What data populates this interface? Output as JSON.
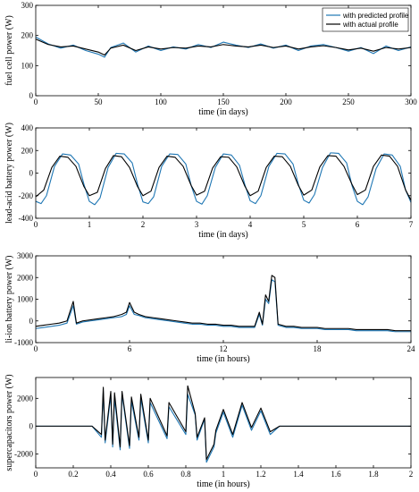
{
  "chart_data": [
    {
      "type": "line",
      "title": "",
      "xlabel": "time (in days)",
      "ylabel": "fuel cell power (W)",
      "xlim": [
        0,
        300
      ],
      "ylim": [
        0,
        300
      ],
      "xticks": [
        0,
        50,
        100,
        150,
        200,
        250,
        300
      ],
      "yticks": [
        0,
        100,
        200,
        300
      ],
      "legend_position": "top-right",
      "series": [
        {
          "name": "with predicted profile",
          "color": "#1f77b4",
          "x": [
            0,
            10,
            20,
            30,
            40,
            50,
            55,
            60,
            70,
            80,
            90,
            100,
            110,
            120,
            130,
            140,
            150,
            160,
            170,
            180,
            190,
            200,
            210,
            220,
            230,
            240,
            250,
            260,
            270,
            280,
            290,
            300
          ],
          "y": [
            195,
            172,
            158,
            168,
            150,
            138,
            128,
            160,
            175,
            145,
            165,
            150,
            162,
            155,
            170,
            160,
            178,
            168,
            160,
            172,
            158,
            168,
            150,
            165,
            170,
            160,
            148,
            160,
            140,
            165,
            150,
            162
          ]
        },
        {
          "name": "with actual profile",
          "color": "#000000",
          "x": [
            0,
            10,
            20,
            30,
            40,
            50,
            55,
            60,
            70,
            80,
            90,
            100,
            110,
            120,
            130,
            140,
            150,
            160,
            170,
            180,
            190,
            200,
            210,
            220,
            230,
            240,
            250,
            260,
            270,
            280,
            290,
            300
          ],
          "y": [
            188,
            170,
            162,
            165,
            155,
            145,
            135,
            158,
            168,
            150,
            162,
            155,
            160,
            158,
            165,
            162,
            170,
            165,
            162,
            168,
            160,
            165,
            155,
            162,
            166,
            160,
            152,
            158,
            148,
            160,
            155,
            160
          ]
        }
      ]
    },
    {
      "type": "line",
      "title": "",
      "xlabel": "time (in days)",
      "ylabel": "lead-acid battery power (W)",
      "xlim": [
        0,
        7
      ],
      "ylim": [
        -400,
        400
      ],
      "xticks": [
        0,
        1,
        2,
        3,
        4,
        5,
        6,
        7
      ],
      "yticks": [
        -400,
        -200,
        0,
        200,
        400
      ],
      "series": [
        {
          "name": "with predicted profile",
          "color": "#1f77b4",
          "x": [
            0,
            0.1,
            0.2,
            0.35,
            0.5,
            0.65,
            0.8,
            0.9,
            1.0,
            1.1,
            1.2,
            1.35,
            1.5,
            1.65,
            1.8,
            1.9,
            2.0,
            2.1,
            2.2,
            2.35,
            2.5,
            2.65,
            2.8,
            2.9,
            3.0,
            3.1,
            3.2,
            3.35,
            3.5,
            3.65,
            3.8,
            3.9,
            4.0,
            4.1,
            4.2,
            4.35,
            4.5,
            4.65,
            4.8,
            4.9,
            5.0,
            5.1,
            5.2,
            5.35,
            5.5,
            5.65,
            5.8,
            5.9,
            6.0,
            6.1,
            6.2,
            6.35,
            6.5,
            6.65,
            6.8,
            6.9,
            7.0
          ],
          "y": [
            -250,
            -270,
            -200,
            60,
            170,
            160,
            80,
            -100,
            -250,
            -280,
            -220,
            50,
            175,
            170,
            90,
            -100,
            -255,
            -270,
            -210,
            60,
            170,
            165,
            80,
            -110,
            -250,
            -275,
            -200,
            50,
            170,
            160,
            70,
            -100,
            -245,
            -270,
            -200,
            60,
            175,
            170,
            80,
            -100,
            -240,
            -265,
            -190,
            50,
            180,
            175,
            90,
            -110,
            -250,
            -280,
            -210,
            40,
            170,
            160,
            60,
            -150,
            -260
          ]
        },
        {
          "name": "with actual profile",
          "color": "#000000",
          "x": [
            0,
            0.15,
            0.3,
            0.45,
            0.6,
            0.75,
            0.9,
            1.0,
            1.15,
            1.3,
            1.45,
            1.6,
            1.75,
            1.9,
            2.0,
            2.15,
            2.3,
            2.45,
            2.6,
            2.75,
            2.9,
            3.0,
            3.15,
            3.3,
            3.45,
            3.6,
            3.75,
            3.9,
            4.0,
            4.15,
            4.3,
            4.45,
            4.6,
            4.75,
            4.9,
            5.0,
            5.15,
            5.3,
            5.45,
            5.6,
            5.75,
            5.9,
            6.0,
            6.15,
            6.3,
            6.45,
            6.6,
            6.75,
            6.9,
            7.0
          ],
          "y": [
            -210,
            -150,
            50,
            150,
            140,
            60,
            -120,
            -200,
            -170,
            40,
            155,
            145,
            50,
            -120,
            -200,
            -160,
            50,
            150,
            140,
            60,
            -110,
            -195,
            -160,
            45,
            145,
            140,
            55,
            -115,
            -200,
            -160,
            50,
            150,
            145,
            60,
            -110,
            -195,
            -150,
            55,
            155,
            150,
            60,
            -100,
            -190,
            -150,
            60,
            160,
            150,
            60,
            -150,
            -240
          ]
        }
      ]
    },
    {
      "type": "line",
      "title": "",
      "xlabel": "time (in hours)",
      "ylabel": "li-ion battery power (W)",
      "xlim": [
        0,
        24
      ],
      "ylim": [
        -1000,
        3000
      ],
      "xticks": [
        0,
        6,
        12,
        18,
        24
      ],
      "yticks": [
        -1000,
        0,
        1000,
        2000,
        3000
      ],
      "series": [
        {
          "name": "with predicted profile",
          "color": "#1f77b4",
          "x": [
            0,
            0.5,
            1,
            1.5,
            2,
            2.4,
            2.6,
            3,
            3.5,
            4,
            4.5,
            5,
            5.5,
            5.8,
            6,
            6.3,
            6.6,
            7,
            7.5,
            8,
            8.5,
            9,
            9.5,
            10,
            10.5,
            11,
            11.5,
            12,
            12.5,
            13,
            13.5,
            14,
            14.3,
            14.5,
            14.7,
            14.9,
            15.1,
            15.3,
            15.5,
            16,
            16.5,
            17,
            17.5,
            18,
            18.5,
            19,
            19.5,
            20,
            20.5,
            21,
            21.5,
            22,
            22.5,
            23,
            23.5,
            24
          ],
          "y": [
            -350,
            -300,
            -250,
            -200,
            -100,
            700,
            -150,
            -50,
            0,
            50,
            100,
            150,
            200,
            300,
            700,
            300,
            250,
            150,
            100,
            50,
            0,
            -50,
            -100,
            -150,
            -150,
            -200,
            -200,
            -250,
            -250,
            -300,
            -300,
            -300,
            300,
            -200,
            1000,
            800,
            1900,
            1800,
            -200,
            -300,
            -300,
            -350,
            -350,
            -350,
            -400,
            -400,
            -400,
            -400,
            -450,
            -450,
            -450,
            -450,
            -450,
            -500,
            -500,
            -500
          ]
        },
        {
          "name": "with actual profile",
          "color": "#000000",
          "x": [
            0,
            0.5,
            1,
            1.5,
            2,
            2.4,
            2.6,
            3,
            3.5,
            4,
            4.5,
            5,
            5.5,
            5.8,
            6,
            6.3,
            6.6,
            7,
            7.5,
            8,
            8.5,
            9,
            9.5,
            10,
            10.5,
            11,
            11.5,
            12,
            12.5,
            13,
            13.5,
            14,
            14.3,
            14.5,
            14.7,
            14.9,
            15.1,
            15.3,
            15.5,
            16,
            16.5,
            17,
            17.5,
            18,
            18.5,
            19,
            19.5,
            20,
            20.5,
            21,
            21.5,
            22,
            22.5,
            23,
            23.5,
            24
          ],
          "y": [
            -250,
            -200,
            -150,
            -100,
            0,
            900,
            -100,
            0,
            50,
            100,
            150,
            200,
            300,
            400,
            850,
            400,
            300,
            200,
            150,
            100,
            50,
            0,
            -50,
            -100,
            -100,
            -150,
            -150,
            -200,
            -200,
            -250,
            -250,
            -250,
            400,
            -150,
            1200,
            900,
            2100,
            2000,
            -150,
            -250,
            -250,
            -300,
            -300,
            -300,
            -350,
            -350,
            -350,
            -350,
            -400,
            -400,
            -400,
            -400,
            -400,
            -450,
            -450,
            -450
          ]
        }
      ]
    },
    {
      "type": "line",
      "title": "",
      "xlabel": "time (in hours)",
      "ylabel": "supercapacitors power (W)",
      "xlim": [
        0,
        2
      ],
      "ylim": [
        -3000,
        3500
      ],
      "xticks": [
        0,
        0.2,
        0.4,
        0.6,
        0.8,
        1,
        1.2,
        1.4,
        1.6,
        1.8,
        2
      ],
      "yticks": [
        -2000,
        0,
        2000
      ],
      "series": [
        {
          "name": "with predicted profile",
          "color": "#1f77b4",
          "x": [
            0,
            0.3,
            0.35,
            0.36,
            0.37,
            0.4,
            0.41,
            0.42,
            0.45,
            0.46,
            0.5,
            0.51,
            0.55,
            0.56,
            0.6,
            0.61,
            0.7,
            0.71,
            0.8,
            0.81,
            0.85,
            0.86,
            0.9,
            0.91,
            0.95,
            0.96,
            1.0,
            1.05,
            1.1,
            1.15,
            1.2,
            1.25,
            1.3,
            1.4,
            1.6,
            1.8,
            2.0
          ],
          "y": [
            0,
            0,
            -800,
            2500,
            -1200,
            2200,
            -1500,
            2000,
            -1700,
            2300,
            -1600,
            1800,
            -1000,
            2000,
            -1200,
            1700,
            -900,
            1400,
            -600,
            2300,
            800,
            -1000,
            500,
            -2600,
            -1500,
            -500,
            1000,
            -800,
            1500,
            -300,
            1100,
            -600,
            0,
            0,
            0,
            0,
            0
          ]
        },
        {
          "name": "with actual profile",
          "color": "#000000",
          "x": [
            0,
            0.3,
            0.35,
            0.36,
            0.37,
            0.4,
            0.41,
            0.42,
            0.45,
            0.46,
            0.5,
            0.51,
            0.55,
            0.56,
            0.6,
            0.61,
            0.7,
            0.71,
            0.8,
            0.81,
            0.85,
            0.86,
            0.9,
            0.91,
            0.95,
            0.96,
            1.0,
            1.05,
            1.1,
            1.15,
            1.2,
            1.25,
            1.3,
            1.4,
            1.6,
            1.8,
            2.0
          ],
          "y": [
            0,
            0,
            -600,
            2800,
            -1000,
            2500,
            -1300,
            2400,
            -1500,
            2500,
            -1400,
            2100,
            -800,
            2300,
            -1000,
            2000,
            -700,
            1700,
            -400,
            2900,
            900,
            -800,
            600,
            -2400,
            -1300,
            -300,
            1200,
            -600,
            1700,
            -100,
            1300,
            -400,
            0,
            0,
            0,
            0,
            0
          ]
        }
      ]
    }
  ]
}
